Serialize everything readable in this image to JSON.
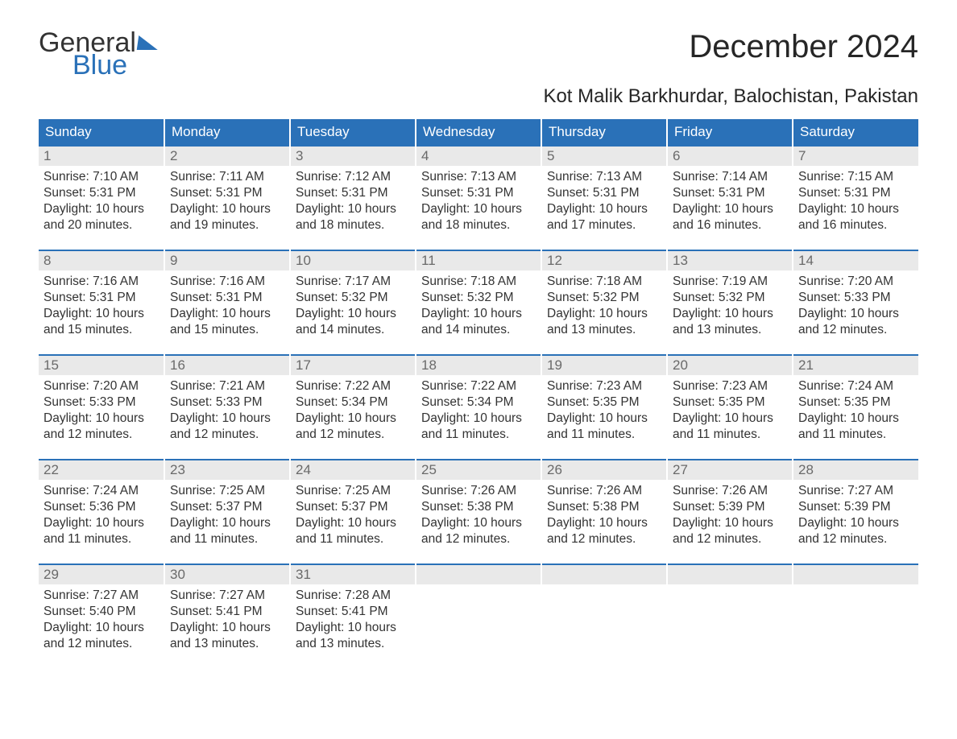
{
  "brand": {
    "line1": "General",
    "line2": "Blue",
    "accent_color": "#2a71b8"
  },
  "title": "December 2024",
  "location": "Kot Malik Barkhurdar, Balochistan, Pakistan",
  "colors": {
    "header_bg": "#2a71b8",
    "header_text": "#ffffff",
    "daynum_bg": "#e9e9e9",
    "daynum_text": "#6a6a6a",
    "body_text": "#333333",
    "page_bg": "#ffffff"
  },
  "weekdays": [
    "Sunday",
    "Monday",
    "Tuesday",
    "Wednesday",
    "Thursday",
    "Friday",
    "Saturday"
  ],
  "weeks": [
    [
      {
        "day": "1",
        "sunrise": "Sunrise: 7:10 AM",
        "sunset": "Sunset: 5:31 PM",
        "dl1": "Daylight: 10 hours",
        "dl2": "and 20 minutes."
      },
      {
        "day": "2",
        "sunrise": "Sunrise: 7:11 AM",
        "sunset": "Sunset: 5:31 PM",
        "dl1": "Daylight: 10 hours",
        "dl2": "and 19 minutes."
      },
      {
        "day": "3",
        "sunrise": "Sunrise: 7:12 AM",
        "sunset": "Sunset: 5:31 PM",
        "dl1": "Daylight: 10 hours",
        "dl2": "and 18 minutes."
      },
      {
        "day": "4",
        "sunrise": "Sunrise: 7:13 AM",
        "sunset": "Sunset: 5:31 PM",
        "dl1": "Daylight: 10 hours",
        "dl2": "and 18 minutes."
      },
      {
        "day": "5",
        "sunrise": "Sunrise: 7:13 AM",
        "sunset": "Sunset: 5:31 PM",
        "dl1": "Daylight: 10 hours",
        "dl2": "and 17 minutes."
      },
      {
        "day": "6",
        "sunrise": "Sunrise: 7:14 AM",
        "sunset": "Sunset: 5:31 PM",
        "dl1": "Daylight: 10 hours",
        "dl2": "and 16 minutes."
      },
      {
        "day": "7",
        "sunrise": "Sunrise: 7:15 AM",
        "sunset": "Sunset: 5:31 PM",
        "dl1": "Daylight: 10 hours",
        "dl2": "and 16 minutes."
      }
    ],
    [
      {
        "day": "8",
        "sunrise": "Sunrise: 7:16 AM",
        "sunset": "Sunset: 5:31 PM",
        "dl1": "Daylight: 10 hours",
        "dl2": "and 15 minutes."
      },
      {
        "day": "9",
        "sunrise": "Sunrise: 7:16 AM",
        "sunset": "Sunset: 5:31 PM",
        "dl1": "Daylight: 10 hours",
        "dl2": "and 15 minutes."
      },
      {
        "day": "10",
        "sunrise": "Sunrise: 7:17 AM",
        "sunset": "Sunset: 5:32 PM",
        "dl1": "Daylight: 10 hours",
        "dl2": "and 14 minutes."
      },
      {
        "day": "11",
        "sunrise": "Sunrise: 7:18 AM",
        "sunset": "Sunset: 5:32 PM",
        "dl1": "Daylight: 10 hours",
        "dl2": "and 14 minutes."
      },
      {
        "day": "12",
        "sunrise": "Sunrise: 7:18 AM",
        "sunset": "Sunset: 5:32 PM",
        "dl1": "Daylight: 10 hours",
        "dl2": "and 13 minutes."
      },
      {
        "day": "13",
        "sunrise": "Sunrise: 7:19 AM",
        "sunset": "Sunset: 5:32 PM",
        "dl1": "Daylight: 10 hours",
        "dl2": "and 13 minutes."
      },
      {
        "day": "14",
        "sunrise": "Sunrise: 7:20 AM",
        "sunset": "Sunset: 5:33 PM",
        "dl1": "Daylight: 10 hours",
        "dl2": "and 12 minutes."
      }
    ],
    [
      {
        "day": "15",
        "sunrise": "Sunrise: 7:20 AM",
        "sunset": "Sunset: 5:33 PM",
        "dl1": "Daylight: 10 hours",
        "dl2": "and 12 minutes."
      },
      {
        "day": "16",
        "sunrise": "Sunrise: 7:21 AM",
        "sunset": "Sunset: 5:33 PM",
        "dl1": "Daylight: 10 hours",
        "dl2": "and 12 minutes."
      },
      {
        "day": "17",
        "sunrise": "Sunrise: 7:22 AM",
        "sunset": "Sunset: 5:34 PM",
        "dl1": "Daylight: 10 hours",
        "dl2": "and 12 minutes."
      },
      {
        "day": "18",
        "sunrise": "Sunrise: 7:22 AM",
        "sunset": "Sunset: 5:34 PM",
        "dl1": "Daylight: 10 hours",
        "dl2": "and 11 minutes."
      },
      {
        "day": "19",
        "sunrise": "Sunrise: 7:23 AM",
        "sunset": "Sunset: 5:35 PM",
        "dl1": "Daylight: 10 hours",
        "dl2": "and 11 minutes."
      },
      {
        "day": "20",
        "sunrise": "Sunrise: 7:23 AM",
        "sunset": "Sunset: 5:35 PM",
        "dl1": "Daylight: 10 hours",
        "dl2": "and 11 minutes."
      },
      {
        "day": "21",
        "sunrise": "Sunrise: 7:24 AM",
        "sunset": "Sunset: 5:35 PM",
        "dl1": "Daylight: 10 hours",
        "dl2": "and 11 minutes."
      }
    ],
    [
      {
        "day": "22",
        "sunrise": "Sunrise: 7:24 AM",
        "sunset": "Sunset: 5:36 PM",
        "dl1": "Daylight: 10 hours",
        "dl2": "and 11 minutes."
      },
      {
        "day": "23",
        "sunrise": "Sunrise: 7:25 AM",
        "sunset": "Sunset: 5:37 PM",
        "dl1": "Daylight: 10 hours",
        "dl2": "and 11 minutes."
      },
      {
        "day": "24",
        "sunrise": "Sunrise: 7:25 AM",
        "sunset": "Sunset: 5:37 PM",
        "dl1": "Daylight: 10 hours",
        "dl2": "and 11 minutes."
      },
      {
        "day": "25",
        "sunrise": "Sunrise: 7:26 AM",
        "sunset": "Sunset: 5:38 PM",
        "dl1": "Daylight: 10 hours",
        "dl2": "and 12 minutes."
      },
      {
        "day": "26",
        "sunrise": "Sunrise: 7:26 AM",
        "sunset": "Sunset: 5:38 PM",
        "dl1": "Daylight: 10 hours",
        "dl2": "and 12 minutes."
      },
      {
        "day": "27",
        "sunrise": "Sunrise: 7:26 AM",
        "sunset": "Sunset: 5:39 PM",
        "dl1": "Daylight: 10 hours",
        "dl2": "and 12 minutes."
      },
      {
        "day": "28",
        "sunrise": "Sunrise: 7:27 AM",
        "sunset": "Sunset: 5:39 PM",
        "dl1": "Daylight: 10 hours",
        "dl2": "and 12 minutes."
      }
    ],
    [
      {
        "day": "29",
        "sunrise": "Sunrise: 7:27 AM",
        "sunset": "Sunset: 5:40 PM",
        "dl1": "Daylight: 10 hours",
        "dl2": "and 12 minutes."
      },
      {
        "day": "30",
        "sunrise": "Sunrise: 7:27 AM",
        "sunset": "Sunset: 5:41 PM",
        "dl1": "Daylight: 10 hours",
        "dl2": "and 13 minutes."
      },
      {
        "day": "31",
        "sunrise": "Sunrise: 7:28 AM",
        "sunset": "Sunset: 5:41 PM",
        "dl1": "Daylight: 10 hours",
        "dl2": "and 13 minutes."
      },
      {
        "day": "",
        "empty": true
      },
      {
        "day": "",
        "empty": true
      },
      {
        "day": "",
        "empty": true
      },
      {
        "day": "",
        "empty": true
      }
    ]
  ]
}
